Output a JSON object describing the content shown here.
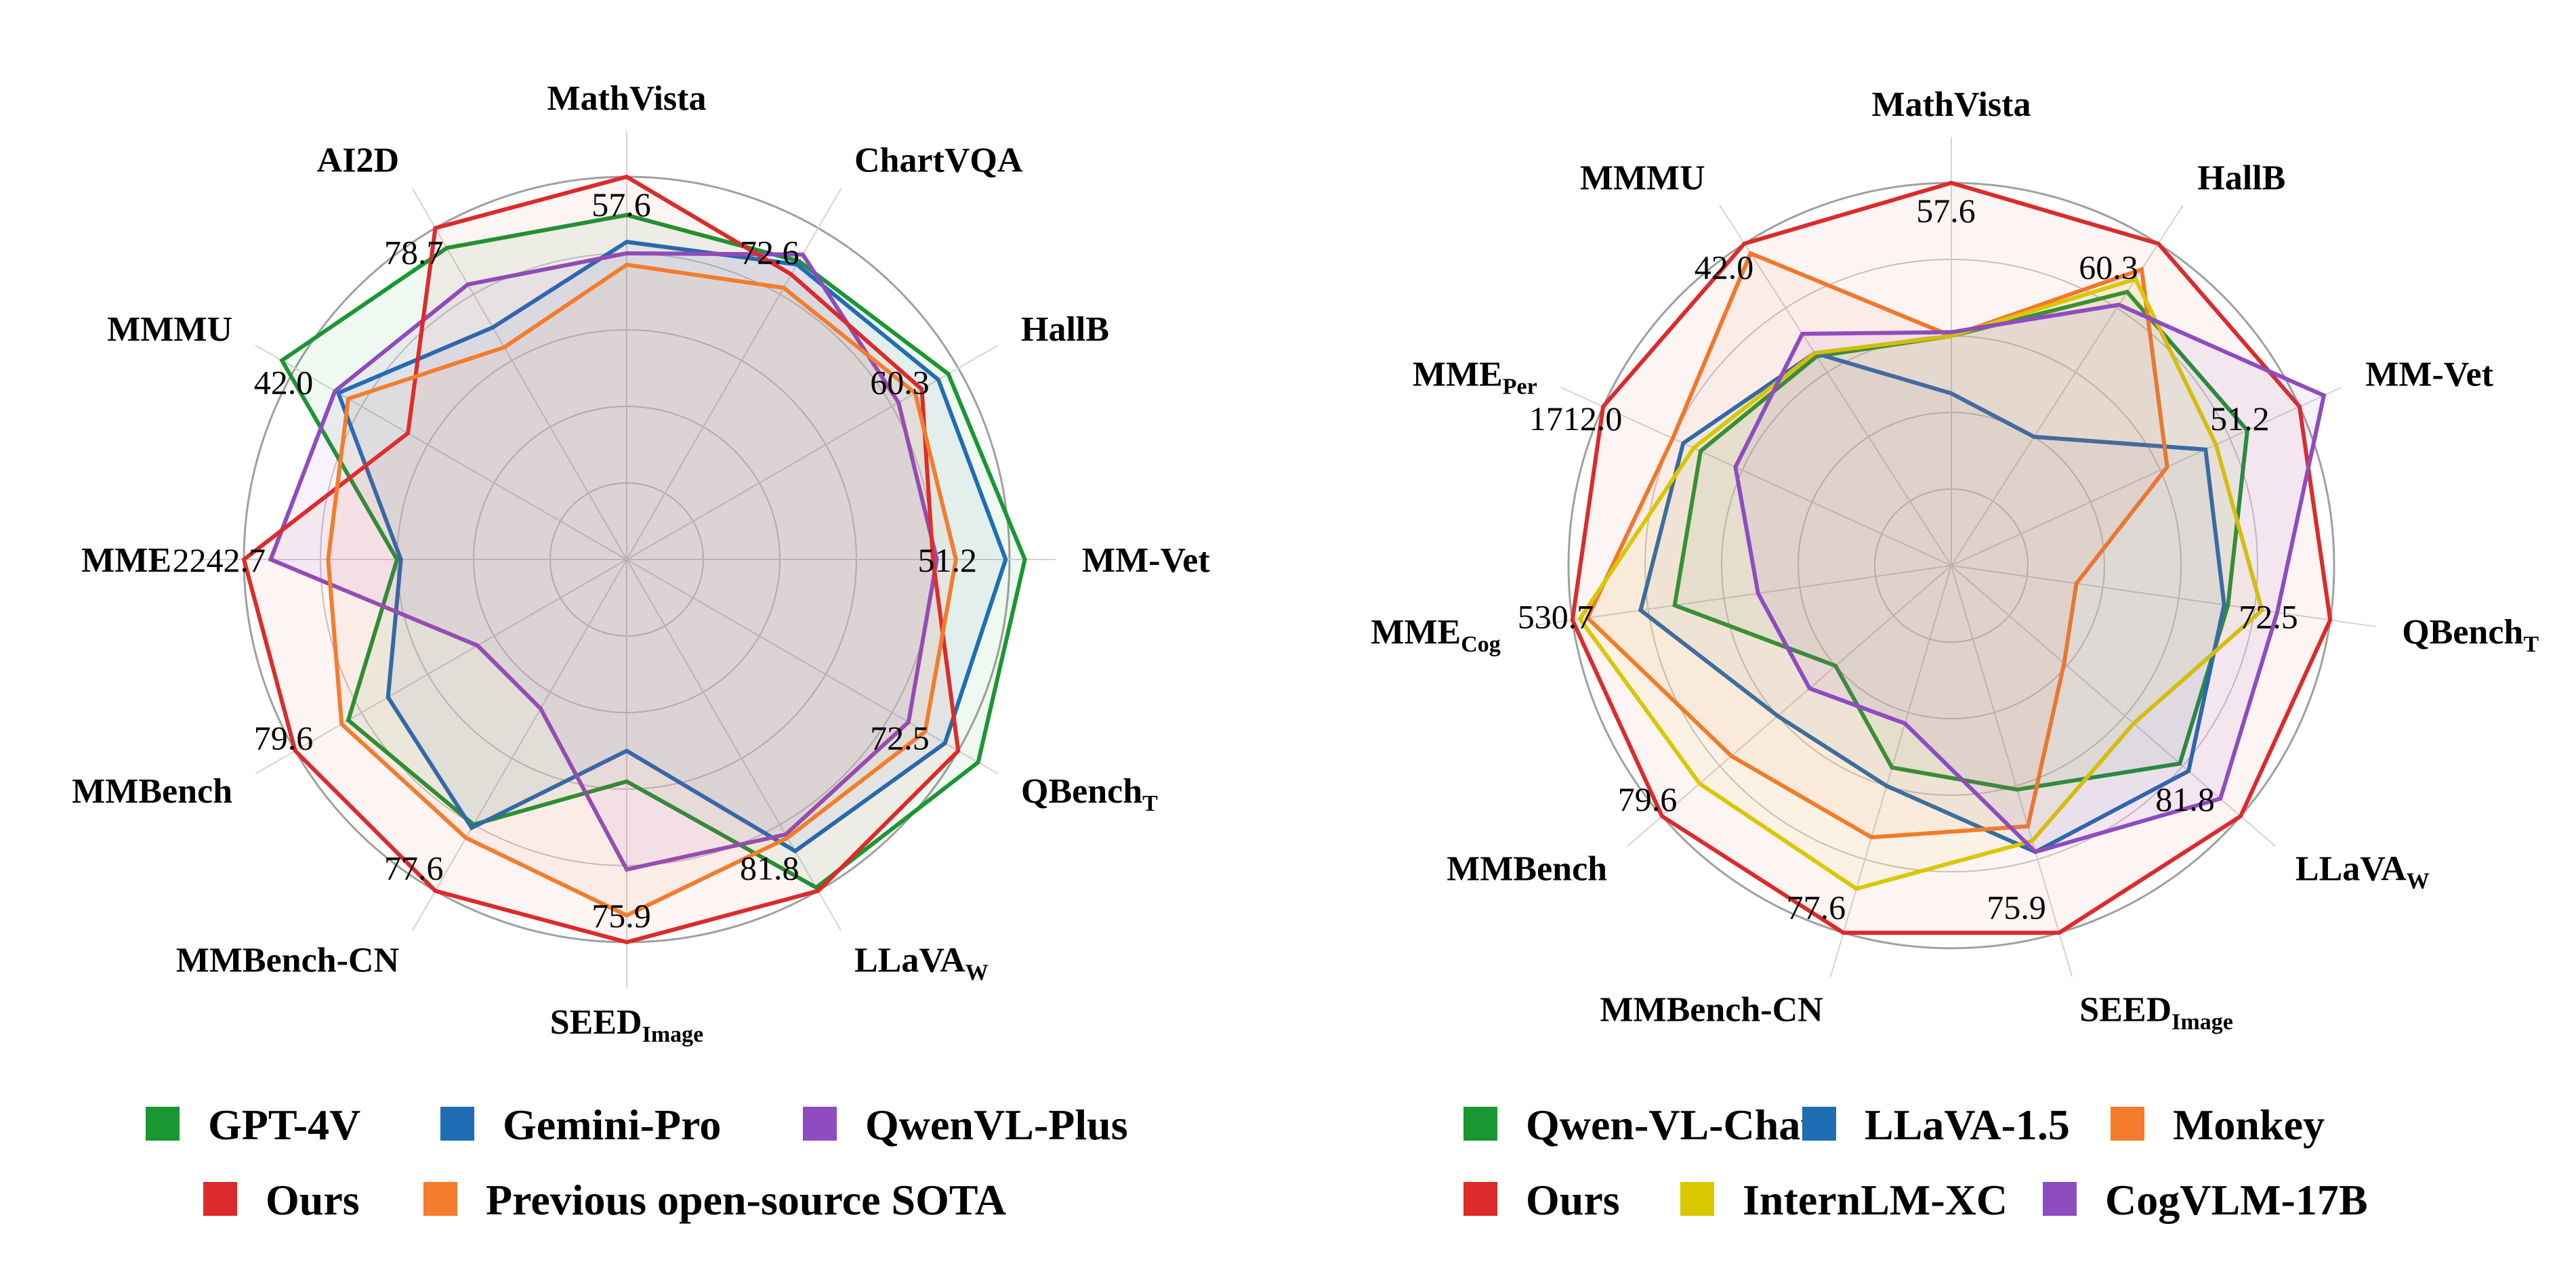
{
  "chart_data": [
    {
      "type": "radar",
      "title": "",
      "axes": [
        {
          "label": "MathVista",
          "sub": "",
          "max_label": "57.6"
        },
        {
          "label": "ChartVQA",
          "sub": "",
          "max_label": "72.6"
        },
        {
          "label": "HallB",
          "sub": "",
          "max_label": "60.3"
        },
        {
          "label": "MM-Vet",
          "sub": "",
          "max_label": "51.2"
        },
        {
          "label": "QBench",
          "sub": "T",
          "max_label": "72.5"
        },
        {
          "label": "LLaVA",
          "sub": "W",
          "max_label": "81.8"
        },
        {
          "label": "SEED",
          "sub": "Image",
          "max_label": "75.9"
        },
        {
          "label": "MMBench-CN",
          "sub": "",
          "max_label": "77.6"
        },
        {
          "label": "MMBench",
          "sub": "",
          "max_label": "79.6"
        },
        {
          "label": "MME",
          "sub": "",
          "max_label": "2242.7"
        },
        {
          "label": "MMMU",
          "sub": "",
          "max_label": "42.0"
        },
        {
          "label": "AI2D",
          "sub": "",
          "max_label": "78.7"
        }
      ],
      "rlim": [
        0,
        1
      ],
      "grid_rings": [
        0.2,
        0.4,
        0.6,
        0.8,
        1.0
      ],
      "series": [
        {
          "name": "GPT-4V",
          "color": "#1a9633",
          "fill_opacity": 0.07,
          "values": [
            0.9,
            0.9,
            0.97,
            1.04,
            1.06,
            0.99,
            0.58,
            0.8,
            0.84,
            0.6,
            1.04,
            0.94
          ]
        },
        {
          "name": "Gemini-Pro",
          "color": "#1f6db5",
          "fill_opacity": 0.06,
          "values": [
            0.83,
            0.89,
            0.94,
            0.99,
            0.96,
            0.88,
            0.5,
            0.81,
            0.72,
            0.59,
            0.87,
            0.7
          ]
        },
        {
          "name": "QwenVL-Plus",
          "color": "#8e4cc0",
          "fill_opacity": 0.07,
          "values": [
            0.8,
            0.92,
            0.82,
            0.81,
            0.85,
            0.83,
            0.81,
            0.45,
            0.45,
            0.93,
            0.88,
            0.83
          ]
        },
        {
          "name": "Ours",
          "color": "#dd2a2a",
          "fill_opacity": 0.05,
          "values": [
            1.0,
            0.86,
            0.89,
            0.8,
            1.0,
            1.0,
            1.0,
            1.0,
            1.0,
            1.0,
            0.66,
            1.0
          ]
        },
        {
          "name": "Previous open-source SOTA",
          "color": "#f47c2c",
          "fill_opacity": 0.06,
          "values": [
            0.77,
            0.82,
            0.87,
            0.86,
            0.9,
            0.84,
            0.93,
            0.84,
            0.86,
            0.78,
            0.84,
            0.64
          ]
        }
      ],
      "legend": {
        "placement": "bottom",
        "rows": [
          [
            "GPT-4V",
            "Gemini-Pro",
            "QwenVL-Plus"
          ],
          [
            "Ours",
            "Previous open-source SOTA"
          ]
        ]
      }
    },
    {
      "type": "radar",
      "title": "",
      "axes": [
        {
          "label": "MathVista",
          "sub": "",
          "max_label": "57.6"
        },
        {
          "label": "HallB",
          "sub": "",
          "max_label": "60.3"
        },
        {
          "label": "MM-Vet",
          "sub": "",
          "max_label": "51.2"
        },
        {
          "label": "QBench",
          "sub": "T",
          "max_label": "72.5"
        },
        {
          "label": "LLaVA",
          "sub": "W",
          "max_label": "81.8"
        },
        {
          "label": "SEED",
          "sub": "Image",
          "max_label": "75.9"
        },
        {
          "label": "MMBench-CN",
          "sub": "",
          "max_label": "77.6"
        },
        {
          "label": "MMBench",
          "sub": "",
          "max_label": "79.6"
        },
        {
          "label": "MME",
          "sub": "Cog",
          "max_label": "530.7"
        },
        {
          "label": "MME",
          "sub": "Per",
          "max_label": "1712.0"
        },
        {
          "label": "MMMU",
          "sub": "",
          "max_label": "42.0"
        }
      ],
      "rlim": [
        0,
        1
      ],
      "grid_rings": [
        0.2,
        0.4,
        0.6,
        0.8,
        1.0
      ],
      "series": [
        {
          "name": "Qwen-VL-Chat",
          "color": "#1a9633",
          "fill_opacity": 0.06,
          "values": [
            0.6,
            0.85,
            0.85,
            0.73,
            0.79,
            0.61,
            0.55,
            0.4,
            0.73,
            0.72,
            0.65
          ]
        },
        {
          "name": "LLaVA-1.5",
          "color": "#1f6db5",
          "fill_opacity": 0.05,
          "values": [
            0.45,
            0.4,
            0.73,
            0.72,
            0.82,
            0.78,
            0.6,
            0.6,
            0.82,
            0.77,
            0.66
          ]
        },
        {
          "name": "Monkey",
          "color": "#f47c2c",
          "fill_opacity": 0.06,
          "values": [
            0.6,
            0.92,
            0.62,
            0.33,
            0.39,
            0.71,
            0.74,
            0.76,
            0.96,
            0.8,
            0.97
          ]
        },
        {
          "name": "Ours",
          "color": "#dd2a2a",
          "fill_opacity": 0.05,
          "values": [
            1.0,
            1.0,
            1.0,
            1.0,
            1.0,
            1.0,
            1.0,
            1.0,
            1.0,
            1.0,
            1.0
          ]
        },
        {
          "name": "InternLM-XC",
          "color": "#d9c700",
          "fill_opacity": 0.06,
          "values": [
            0.6,
            0.89,
            0.76,
            0.82,
            0.63,
            0.75,
            0.88,
            0.87,
            0.98,
            0.74,
            0.66
          ]
        },
        {
          "name": "CogVLM-17B",
          "color": "#8e4cc0",
          "fill_opacity": 0.08,
          "values": [
            0.61,
            0.81,
            1.07,
            0.86,
            0.93,
            0.78,
            0.43,
            0.49,
            0.51,
            0.62,
            0.72
          ]
        }
      ],
      "legend": {
        "placement": "bottom",
        "rows": [
          [
            "Qwen-VL-Chat",
            "LLaVA-1.5",
            "Monkey"
          ],
          [
            "Ours",
            "InternLM-XC",
            "CogVLM-17B"
          ]
        ]
      }
    }
  ]
}
